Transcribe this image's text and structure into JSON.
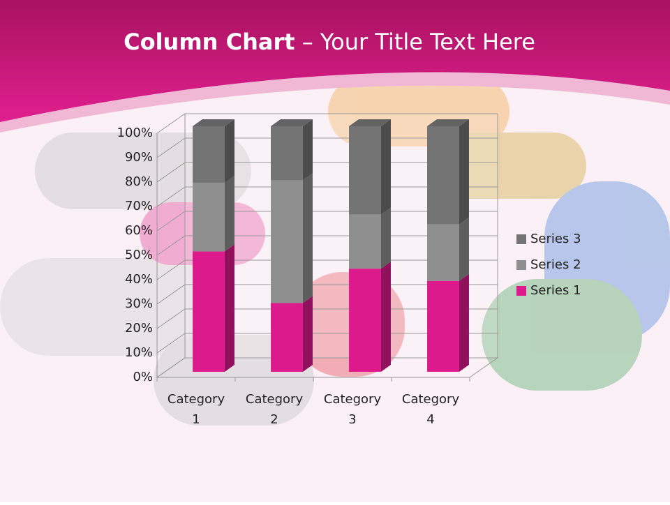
{
  "chart_data": {
    "type": "stacked-column-3d",
    "title": "Column Chart",
    "subtitle": "– Your Title Text Here",
    "categories": [
      "Category 1",
      "Category 2",
      "Category 3",
      "Category 4"
    ],
    "series": [
      {
        "name": "Series 1",
        "color": "#dc1a8c",
        "values": [
          49,
          28,
          42,
          37
        ]
      },
      {
        "name": "Series 2",
        "color": "#8f8f8f",
        "values": [
          28,
          50,
          22,
          23
        ]
      },
      {
        "name": "Series 3",
        "color": "#747474",
        "values": [
          23,
          22,
          36,
          40
        ]
      }
    ],
    "ylim": [
      0,
      100
    ],
    "yticks": [
      {
        "value": 0,
        "label": "0%"
      },
      {
        "value": 10,
        "label": "10%"
      },
      {
        "value": 20,
        "label": "20%"
      },
      {
        "value": 30,
        "label": "30%"
      },
      {
        "value": 40,
        "label": "40%"
      },
      {
        "value": 50,
        "label": "50%"
      },
      {
        "value": 60,
        "label": "60%"
      },
      {
        "value": 70,
        "label": "70%"
      },
      {
        "value": 80,
        "label": "80%"
      },
      {
        "value": 90,
        "label": "90%"
      },
      {
        "value": 100,
        "label": "100%"
      }
    ],
    "grid": true,
    "legend": "right"
  }
}
